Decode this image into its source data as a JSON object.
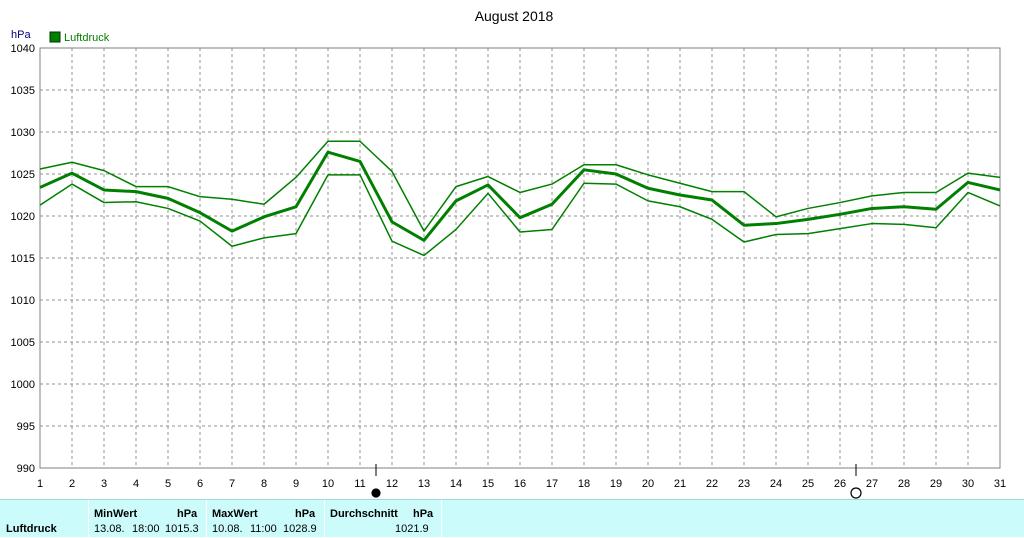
{
  "chart_data": {
    "type": "line",
    "title": "August 2018",
    "ylabel": "hPa",
    "ylim": [
      990,
      1040
    ],
    "yticks": [
      990,
      995,
      1000,
      1005,
      1010,
      1015,
      1020,
      1025,
      1030,
      1035,
      1040
    ],
    "x": [
      1,
      2,
      3,
      4,
      5,
      6,
      7,
      8,
      9,
      10,
      11,
      12,
      13,
      14,
      15,
      16,
      17,
      18,
      19,
      20,
      21,
      22,
      23,
      24,
      25,
      26,
      27,
      28,
      29,
      30,
      31
    ],
    "xlim": [
      1,
      31
    ],
    "grid": true,
    "legend": {
      "label": "Luftdruck",
      "color": "#008000",
      "position": "top-left"
    },
    "series": [
      {
        "name": "Luftdruck",
        "role": "mean",
        "values": [
          1023.4,
          1025.1,
          1023.1,
          1022.9,
          1022.1,
          1020.4,
          1018.2,
          1019.9,
          1021.1,
          1027.6,
          1026.5,
          1019.3,
          1017.1,
          1021.8,
          1023.7,
          1019.8,
          1021.4,
          1025.5,
          1025.0,
          1023.3,
          1022.5,
          1021.9,
          1018.9,
          1019.1,
          1019.6,
          1020.2,
          1020.9,
          1021.1,
          1020.8,
          1024.0,
          1023.1
        ]
      },
      {
        "role": "max",
        "values": [
          1025.6,
          1026.4,
          1025.4,
          1023.5,
          1023.5,
          1022.3,
          1022.0,
          1021.4,
          1024.6,
          1028.9,
          1028.9,
          1025.3,
          1018.2,
          1023.5,
          1024.7,
          1022.8,
          1023.8,
          1026.1,
          1026.1,
          1024.9,
          1023.9,
          1022.9,
          1022.9,
          1019.9,
          1020.9,
          1021.6,
          1022.4,
          1022.8,
          1022.8,
          1025.1,
          1024.6
        ]
      },
      {
        "role": "min",
        "values": [
          1021.3,
          1023.8,
          1021.6,
          1021.7,
          1020.9,
          1019.4,
          1016.4,
          1017.4,
          1017.9,
          1024.9,
          1024.9,
          1017.0,
          1015.3,
          1018.4,
          1022.7,
          1018.1,
          1018.4,
          1023.9,
          1023.8,
          1021.8,
          1021.1,
          1019.6,
          1016.9,
          1017.8,
          1017.9,
          1018.5,
          1019.1,
          1019.0,
          1018.6,
          1022.8,
          1021.2
        ]
      }
    ],
    "moon_markers": [
      {
        "day": 11.5,
        "phase": "new-moon"
      },
      {
        "day": 26.5,
        "phase": "full-moon"
      }
    ]
  },
  "footer": {
    "row_label": "Luftdruck",
    "min": {
      "header": "MinWert",
      "unit": "hPa",
      "date": "13.08.",
      "time": "18:00",
      "value": "1015.3"
    },
    "max": {
      "header": "MaxWert",
      "unit": "hPa",
      "date": "10.08.",
      "time": "11:00",
      "value": "1028.9"
    },
    "avg": {
      "header": "Durchschnitt",
      "unit": "hPa",
      "value": "1021.9"
    }
  }
}
